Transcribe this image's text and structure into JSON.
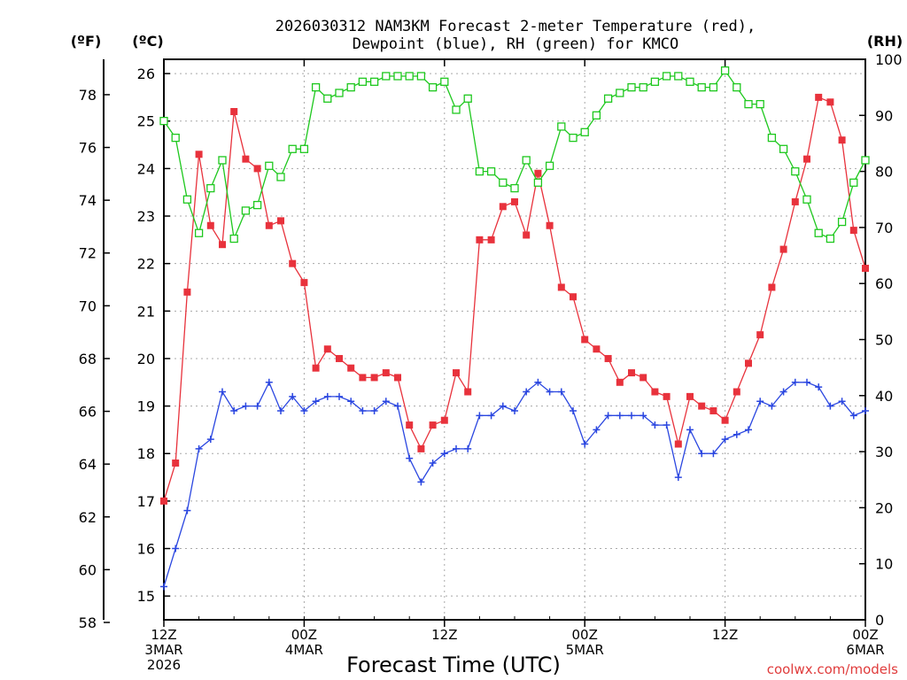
{
  "chart_data": {
    "type": "line",
    "title_line1": "2026030312 NAM3KM Forecast 2-meter Temperature (red),",
    "title_line2": "Dewpoint (blue), RH (green) for KMCO",
    "xlabel": "Forecast Time (UTC)",
    "credit": "coolwx.com/models",
    "units": {
      "fahrenheit": "(ºF)",
      "celsius": "(ºC)",
      "rh": "(RH)"
    },
    "x_range_hours": [
      0,
      60
    ],
    "celsius_range": [
      14.5,
      26.3
    ],
    "rh_range": [
      0,
      100
    ],
    "celsius_ticks": [
      "15",
      "16",
      "17",
      "18",
      "19",
      "20",
      "21",
      "22",
      "23",
      "24",
      "25",
      "26"
    ],
    "fahrenheit_ticks": [
      "58",
      "60",
      "62",
      "64",
      "66",
      "68",
      "70",
      "72",
      "74",
      "76",
      "78"
    ],
    "rh_ticks": [
      "0",
      "10",
      "20",
      "30",
      "40",
      "50",
      "60",
      "70",
      "80",
      "90",
      "100"
    ],
    "x_ticks": [
      {
        "hour": 0,
        "line1": "12Z",
        "line2": "3MAR",
        "line3": "2026"
      },
      {
        "hour": 12,
        "line1": "00Z",
        "line2": "4MAR",
        "line3": ""
      },
      {
        "hour": 24,
        "line1": "12Z",
        "line2": "",
        "line3": ""
      },
      {
        "hour": 36,
        "line1": "00Z",
        "line2": "5MAR",
        "line3": ""
      },
      {
        "hour": 48,
        "line1": "12Z",
        "line2": "",
        "line3": ""
      },
      {
        "hour": 60,
        "line1": "00Z",
        "line2": "6MAR",
        "line3": ""
      }
    ],
    "series": [
      {
        "name": "2-meter Temperature",
        "color": "#e8323c",
        "marker": "filled-square",
        "axis": "celsius",
        "x": [
          0,
          1,
          2,
          3,
          4,
          5,
          6,
          7,
          8,
          9,
          10,
          11,
          12,
          13,
          14,
          15,
          16,
          17,
          18,
          19,
          20,
          21,
          22,
          23,
          24,
          25,
          26,
          27,
          28,
          29,
          30,
          31,
          32,
          33,
          34,
          35,
          36,
          37,
          38,
          39,
          40,
          41,
          42,
          43,
          44,
          45,
          46,
          47,
          48,
          49,
          50,
          51,
          52,
          53,
          54,
          55,
          56,
          57,
          58,
          59,
          60
        ],
        "values": [
          17.0,
          17.8,
          21.4,
          24.3,
          22.8,
          22.4,
          25.2,
          24.2,
          24.0,
          22.8,
          22.9,
          22.0,
          21.6,
          19.8,
          20.2,
          20.0,
          19.8,
          19.6,
          19.6,
          19.7,
          19.6,
          18.6,
          18.1,
          18.6,
          18.7,
          19.7,
          19.3,
          22.5,
          22.5,
          23.2,
          23.3,
          22.6,
          23.9,
          22.8,
          21.5,
          21.3,
          20.4,
          20.2,
          20.0,
          19.5,
          19.7,
          19.6,
          19.3,
          19.2,
          18.2,
          19.2,
          19.0,
          18.9,
          18.7,
          19.3,
          19.9,
          20.5,
          21.5,
          22.3,
          23.3,
          24.2,
          25.5,
          25.4,
          24.6,
          22.7,
          21.9
        ]
      },
      {
        "name": "Dewpoint",
        "color": "#2a46e0",
        "marker": "plus",
        "axis": "celsius",
        "x": [
          0,
          1,
          2,
          3,
          4,
          5,
          6,
          7,
          8,
          9,
          10,
          11,
          12,
          13,
          14,
          15,
          16,
          17,
          18,
          19,
          20,
          21,
          22,
          23,
          24,
          25,
          26,
          27,
          28,
          29,
          30,
          31,
          32,
          33,
          34,
          35,
          36,
          37,
          38,
          39,
          40,
          41,
          42,
          43,
          44,
          45,
          46,
          47,
          48,
          49,
          50,
          51,
          52,
          53,
          54,
          55,
          56,
          57,
          58,
          59,
          60
        ],
        "values": [
          15.2,
          16.0,
          16.8,
          18.1,
          18.3,
          19.3,
          18.9,
          19.0,
          19.0,
          19.5,
          18.9,
          19.2,
          18.9,
          19.1,
          19.2,
          19.2,
          19.1,
          18.9,
          18.9,
          19.1,
          19.0,
          17.9,
          17.4,
          17.8,
          18.0,
          18.1,
          18.1,
          18.8,
          18.8,
          19.0,
          18.9,
          19.3,
          19.5,
          19.3,
          19.3,
          18.9,
          18.2,
          18.5,
          18.8,
          18.8,
          18.8,
          18.8,
          18.6,
          18.6,
          17.5,
          18.5,
          18.0,
          18.0,
          18.3,
          18.4,
          18.5,
          19.1,
          19.0,
          19.3,
          19.5,
          19.5,
          19.4,
          19.0,
          19.1,
          18.8,
          18.9
        ]
      },
      {
        "name": "RH",
        "color": "#1ec81e",
        "marker": "open-square",
        "axis": "rh",
        "x": [
          0,
          1,
          2,
          3,
          4,
          5,
          6,
          7,
          8,
          9,
          10,
          11,
          12,
          13,
          14,
          15,
          16,
          17,
          18,
          19,
          20,
          21,
          22,
          23,
          24,
          25,
          26,
          27,
          28,
          29,
          30,
          31,
          32,
          33,
          34,
          35,
          36,
          37,
          38,
          39,
          40,
          41,
          42,
          43,
          44,
          45,
          46,
          47,
          48,
          49,
          50,
          51,
          52,
          53,
          54,
          55,
          56,
          57,
          58,
          59,
          60
        ],
        "values": [
          89,
          86,
          75,
          69,
          77,
          82,
          68,
          73,
          74,
          81,
          79,
          84,
          84,
          95,
          93,
          94,
          95,
          96,
          96,
          97,
          97,
          97,
          97,
          95,
          96,
          91,
          93,
          80,
          80,
          78,
          77,
          82,
          78,
          81,
          88,
          86,
          87,
          90,
          93,
          94,
          95,
          95,
          96,
          97,
          97,
          96,
          95,
          95,
          98,
          95,
          92,
          92,
          86,
          84,
          80,
          75,
          69,
          68,
          71,
          78,
          82
        ]
      }
    ]
  }
}
